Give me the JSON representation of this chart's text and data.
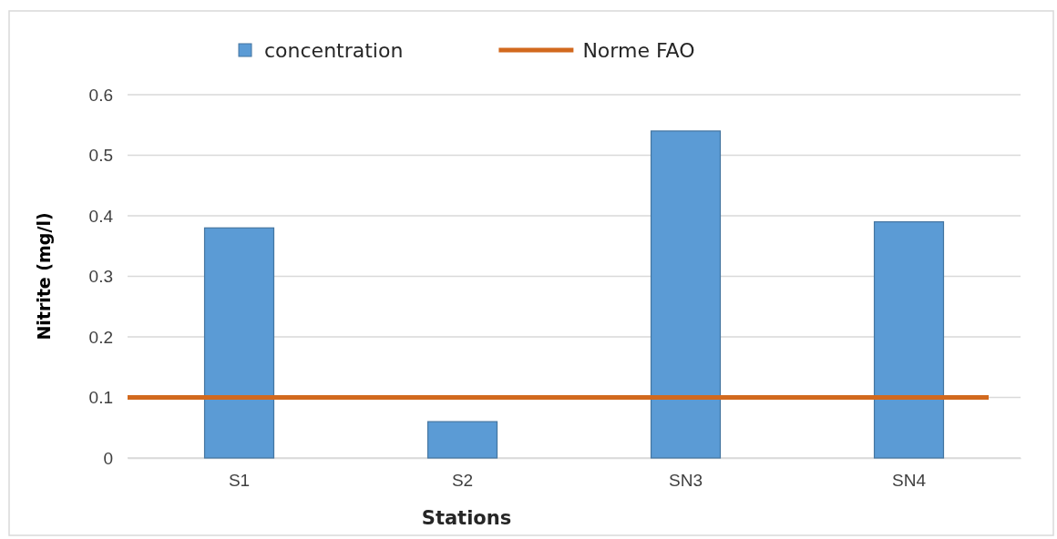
{
  "chart_data": {
    "type": "bar",
    "xlabel": "Stations",
    "ylabel": "Nitrite (mg/l)",
    "categories": [
      "S1",
      "S2",
      "SN3",
      "SN4"
    ],
    "series": [
      {
        "name": "concentration",
        "color": "#5b9bd5",
        "values": [
          0.38,
          0.06,
          0.54,
          0.39
        ]
      }
    ],
    "ylim": [
      0,
      0.6
    ],
    "yticks": [
      0,
      0.1,
      0.2,
      0.3,
      0.4,
      0.5,
      0.6
    ],
    "grid": "y",
    "legend": "top",
    "ref_lines": [
      {
        "axis": "y",
        "value": 0.1,
        "label": "Norme FAO",
        "color": "#d2691e"
      }
    ]
  }
}
